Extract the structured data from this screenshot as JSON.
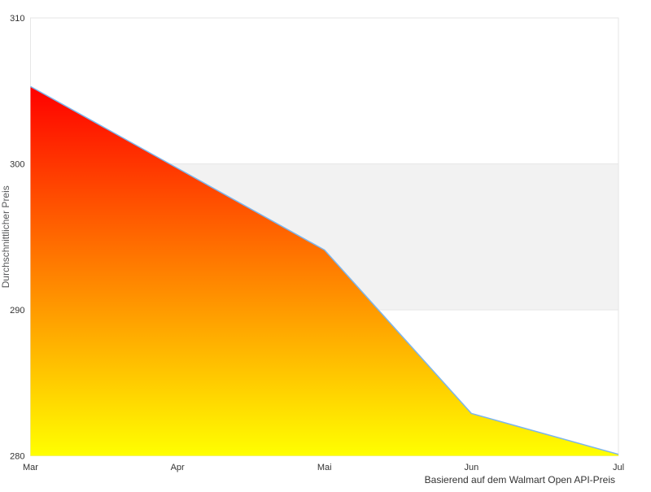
{
  "chart_data": {
    "type": "area",
    "title": "",
    "xlabel": "",
    "ylabel": "Durchschnittlicher Preis",
    "caption": "Basierend auf dem Walmart Open API-Preis",
    "categories": [
      "Mar",
      "Apr",
      "Mai",
      "Jun",
      "Jul"
    ],
    "series": [
      {
        "name": "Durchschnittlicher Preis",
        "values": [
          305.3,
          299.7,
          294.1,
          282.9,
          280.1
        ]
      }
    ],
    "ylim": [
      280,
      310
    ],
    "yticks": [
      280,
      290,
      300,
      310
    ],
    "grid": "horizontal",
    "legend": "none",
    "plot_band": {
      "from": 290,
      "to": 300,
      "color": "#f2f2f2"
    },
    "colors": {
      "line": "#7cb5ec",
      "area_gradient_top": "#ff0000",
      "area_gradient_bottom": "#ffff00",
      "grid": "#e6e6e6",
      "tick_label": "#333333",
      "axis_title": "#58595b",
      "caption_text": "#333333",
      "background": "#ffffff"
    }
  }
}
